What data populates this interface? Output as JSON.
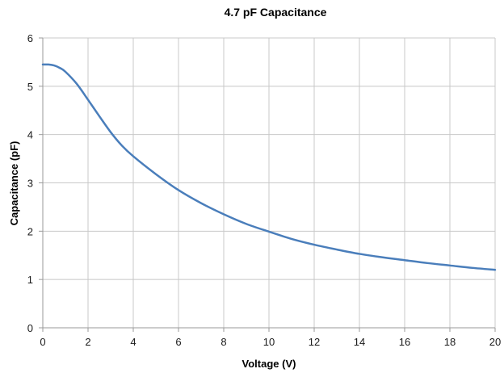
{
  "chart_data": {
    "type": "line",
    "title": "4.7 pF Capacitance",
    "xlabel": "Voltage (V)",
    "ylabel": "Capacitance (pF)",
    "xlim": [
      0,
      20
    ],
    "ylim": [
      0,
      6
    ],
    "x_ticks": [
      "0",
      "2",
      "4",
      "6",
      "8",
      "10",
      "12",
      "14",
      "16",
      "18",
      "20"
    ],
    "y_ticks": [
      "0",
      "1",
      "2",
      "3",
      "4",
      "5",
      "6"
    ],
    "grid": true,
    "legend": "none",
    "series": [
      {
        "color": "#4a7ebb",
        "x": [
          0,
          0.25,
          0.5,
          0.75,
          1,
          1.5,
          2,
          2.5,
          3,
          3.5,
          4,
          5,
          6,
          7,
          8,
          9,
          10,
          11,
          12,
          13,
          14,
          15,
          16,
          17,
          18,
          19,
          20
        ],
        "y": [
          5.45,
          5.45,
          5.43,
          5.38,
          5.3,
          5.05,
          4.72,
          4.38,
          4.05,
          3.77,
          3.55,
          3.18,
          2.85,
          2.58,
          2.35,
          2.15,
          1.99,
          1.84,
          1.72,
          1.62,
          1.53,
          1.46,
          1.4,
          1.34,
          1.29,
          1.24,
          1.2
        ]
      }
    ]
  }
}
